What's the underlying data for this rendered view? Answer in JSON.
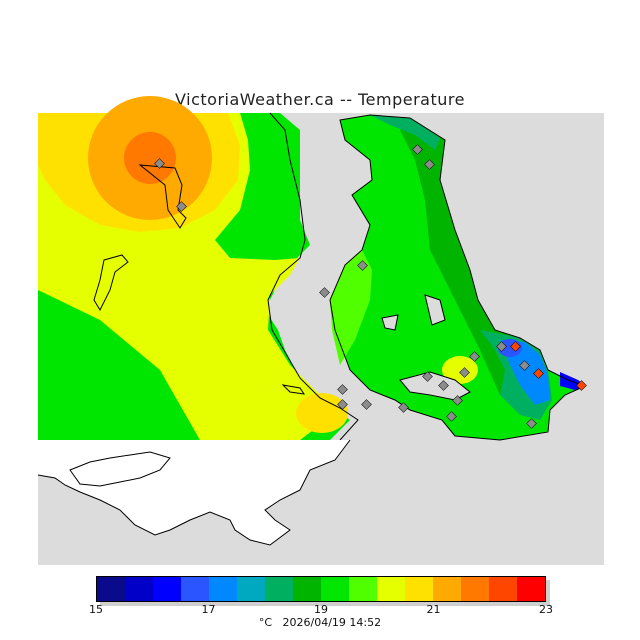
{
  "title": "VictoriaWeather.ca -- Temperature",
  "footer": {
    "unit": "°C",
    "timestamp": "2026/04/19 14:52"
  },
  "legend": {
    "min": 15,
    "max": 23,
    "ticks": [
      "15",
      "17",
      "19",
      "21",
      "23"
    ],
    "colors": [
      "#0a0a8c",
      "#0000c8",
      "#0000ff",
      "#2a55ff",
      "#0088ff",
      "#00a8c0",
      "#00b060",
      "#00b400",
      "#00e600",
      "#50ff00",
      "#e6ff00",
      "#ffe100",
      "#ffaa00",
      "#ff7800",
      "#ff4600",
      "#ff0000"
    ]
  },
  "palette": {
    "sea": "#dcdcdc",
    "no_data": "#ffffff",
    "coastline": "#000000",
    "station_marker": "#8c8c8c"
  },
  "stations_count": 22
}
